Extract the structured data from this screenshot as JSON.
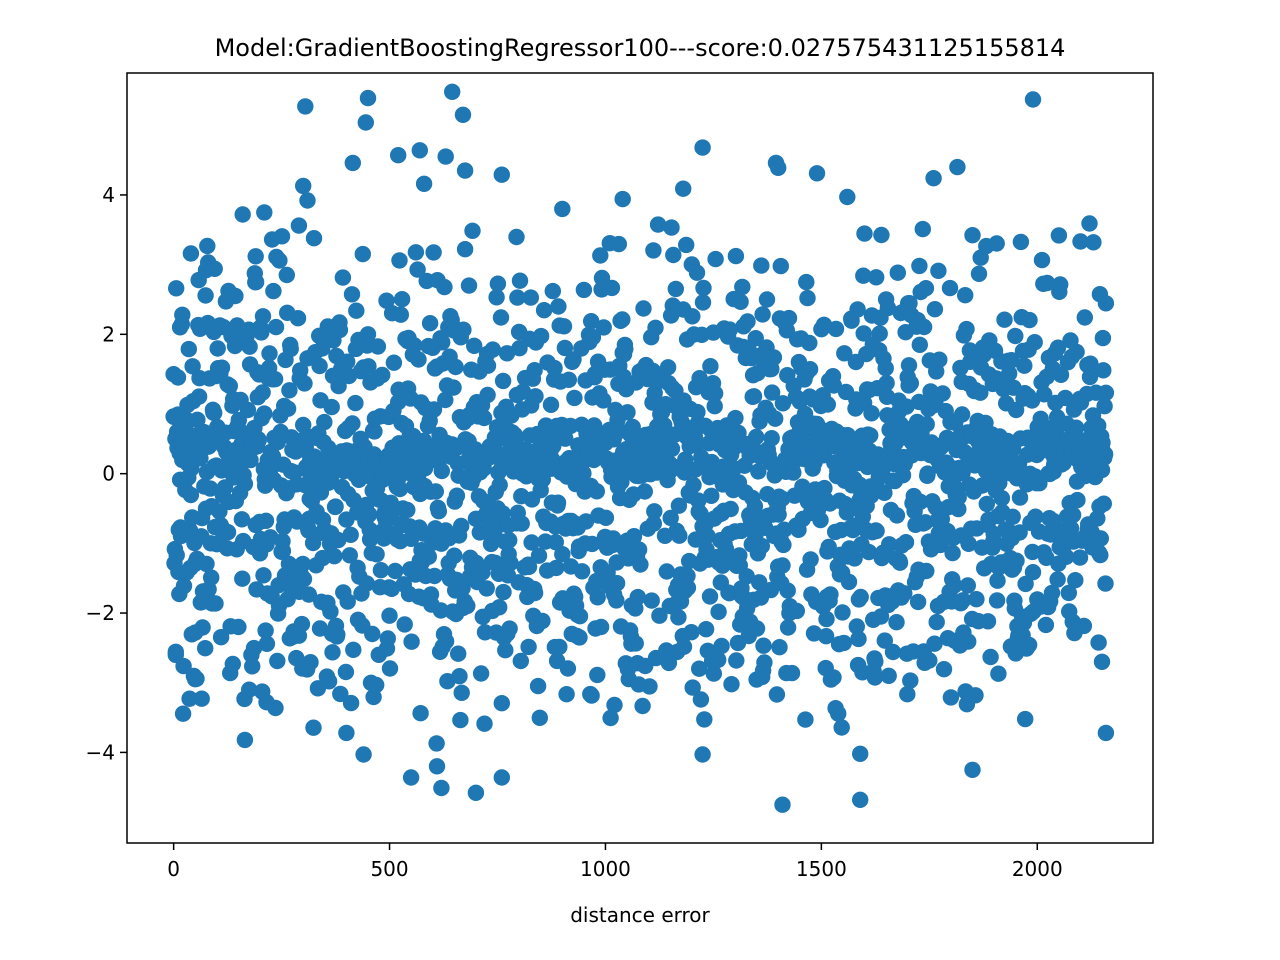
{
  "chart_data": {
    "type": "scatter",
    "title": "Model:GradientBoostingRegressor100---score:0.027575431125155814",
    "xlabel": "distance error",
    "ylabel": "",
    "xlim": [
      -108,
      2268
    ],
    "ylim": [
      -5.3,
      5.75
    ],
    "x_ticks": [
      0,
      500,
      1000,
      1500,
      2000
    ],
    "x_tick_labels": [
      "0",
      "500",
      "1000",
      "1500",
      "2000"
    ],
    "y_ticks": [
      -4,
      -2,
      0,
      2,
      4
    ],
    "y_tick_labels": [
      "−4",
      "−2",
      "0",
      "2",
      "4"
    ],
    "grid": false,
    "legend": "none",
    "marker_color": "#1f77b4",
    "series": [
      {
        "n_points": 2160,
        "x_range": [
          0,
          2159
        ],
        "y_range": [
          -4.75,
          5.48
        ],
        "sample_points": [
          [
            0,
            0.82
          ],
          [
            5,
            -2.6
          ],
          [
            10,
            1.38
          ],
          [
            15,
            2.1
          ],
          [
            20,
            2.28
          ],
          [
            30,
            -1.42
          ],
          [
            40,
            3.16
          ],
          [
            50,
            -2.28
          ],
          [
            50,
            -2.95
          ],
          [
            60,
            1.37
          ],
          [
            75,
            2.92
          ],
          [
            80,
            3.03
          ],
          [
            95,
            2.94
          ],
          [
            150,
            -2.2
          ],
          [
            160,
            3.72
          ],
          [
            165,
            -3.82
          ],
          [
            175,
            -3.1
          ],
          [
            180,
            -2.6
          ],
          [
            190,
            3.12
          ],
          [
            210,
            3.75
          ],
          [
            215,
            -3.28
          ],
          [
            290,
            3.56
          ],
          [
            300,
            4.13
          ],
          [
            305,
            5.27
          ],
          [
            310,
            3.92
          ],
          [
            360,
            -2.98
          ],
          [
            400,
            -3.72
          ],
          [
            415,
            4.46
          ],
          [
            440,
            -4.03
          ],
          [
            445,
            5.04
          ],
          [
            450,
            5.39
          ],
          [
            520,
            4.57
          ],
          [
            550,
            -4.36
          ],
          [
            570,
            4.64
          ],
          [
            580,
            4.16
          ],
          [
            610,
            -4.2
          ],
          [
            620,
            -4.51
          ],
          [
            630,
            4.55
          ],
          [
            645,
            5.48
          ],
          [
            670,
            5.15
          ],
          [
            675,
            4.35
          ],
          [
            700,
            -4.58
          ],
          [
            760,
            4.29
          ],
          [
            760,
            -4.36
          ],
          [
            900,
            3.8
          ],
          [
            1040,
            3.94
          ],
          [
            1180,
            4.09
          ],
          [
            1225,
            4.68
          ],
          [
            1225,
            -4.03
          ],
          [
            1395,
            4.46
          ],
          [
            1400,
            4.39
          ],
          [
            1410,
            -4.75
          ],
          [
            1490,
            4.31
          ],
          [
            1560,
            3.97
          ],
          [
            1590,
            -4.68
          ],
          [
            1590,
            -4.02
          ],
          [
            1760,
            4.24
          ],
          [
            1815,
            4.4
          ],
          [
            1850,
            -4.25
          ],
          [
            1990,
            5.37
          ],
          [
            2130,
            3.32
          ],
          [
            2159,
            1.16
          ],
          [
            2159,
            -3.72
          ],
          [
            2150,
            -2.7
          ],
          [
            2150,
            0.36
          ]
        ]
      }
    ]
  }
}
